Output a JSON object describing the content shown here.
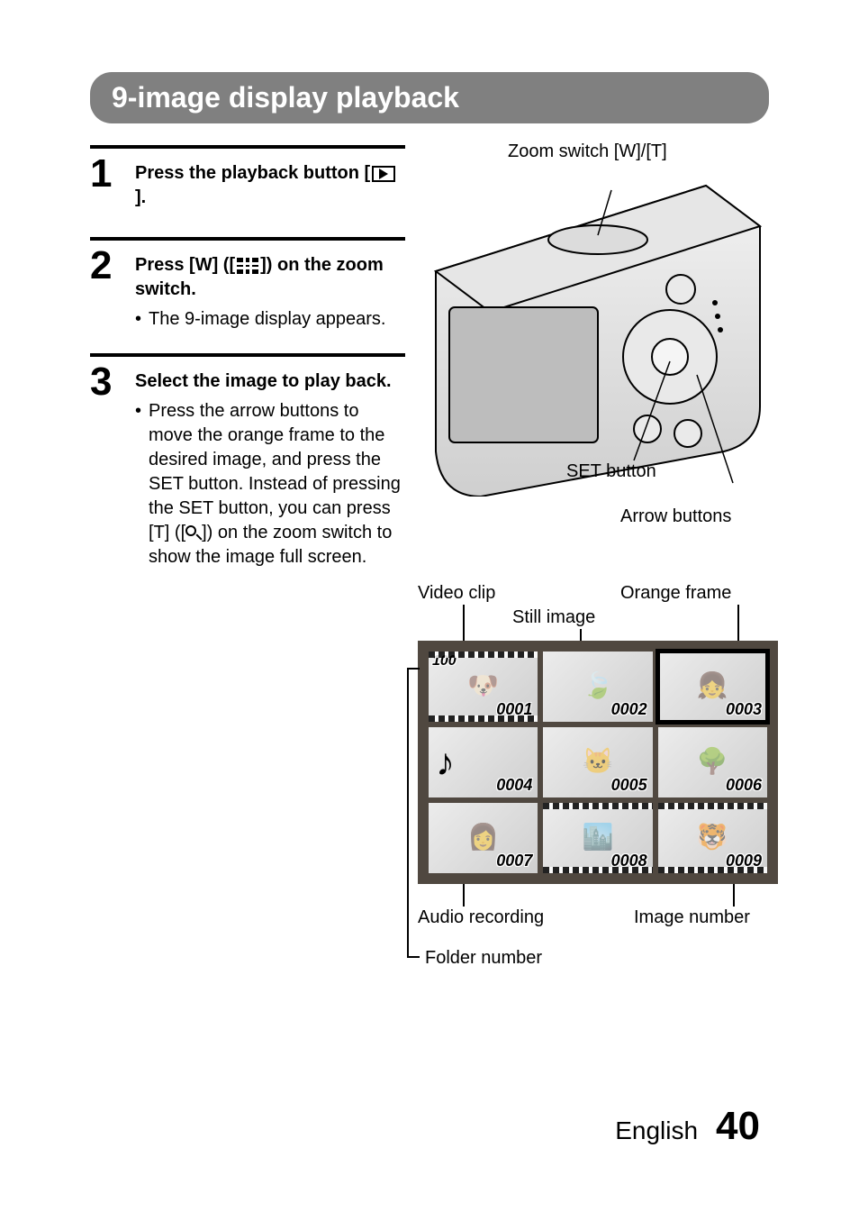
{
  "title": "9-image display playback",
  "steps": [
    {
      "num": "1",
      "title_parts": [
        "Press the playback button [",
        "playback-icon",
        "]."
      ],
      "bullets": []
    },
    {
      "num": "2",
      "title_parts": [
        "Press [W] ([",
        "grid-icon",
        "]) on the zoom switch."
      ],
      "bullets": [
        "The 9-image display appears."
      ]
    },
    {
      "num": "3",
      "title_parts": [
        "Select the image to play back."
      ],
      "bullets": [
        "Press the arrow buttons to move the orange frame to the desired image, and press the SET button. Instead of pressing the SET button, you can press [T] ([__MAG__]) on the zoom switch to show the image full screen."
      ]
    }
  ],
  "figure": {
    "labels": {
      "zoom_switch": "Zoom switch [W]/[T]",
      "set_button": "SET button",
      "arrow_buttons": "Arrow buttons",
      "video_clip": "Video clip",
      "still_image": "Still image",
      "orange_frame": "Orange frame",
      "audio_recording": "Audio recording",
      "image_number": "Image number",
      "folder_number": "Folder number"
    },
    "folder_number_value": "100",
    "thumbnails": [
      {
        "num": "0001",
        "type": "video",
        "glyph": "🐶"
      },
      {
        "num": "0002",
        "type": "still",
        "glyph": "🍃"
      },
      {
        "num": "0003",
        "type": "still",
        "glyph": "👧",
        "selected": true
      },
      {
        "num": "0004",
        "type": "audio",
        "glyph": ""
      },
      {
        "num": "0005",
        "type": "still",
        "glyph": "🐱"
      },
      {
        "num": "0006",
        "type": "still",
        "glyph": "🌳"
      },
      {
        "num": "0007",
        "type": "still",
        "glyph": "👩"
      },
      {
        "num": "0008",
        "type": "video",
        "glyph": "🏙️"
      },
      {
        "num": "0009",
        "type": "video",
        "glyph": "🐯"
      }
    ]
  },
  "footer": {
    "lang": "English",
    "page": "40"
  },
  "colors": {
    "title_bg": "#808080",
    "title_fg": "#ffffff",
    "panel_border": "#504840",
    "text": "#000000"
  }
}
